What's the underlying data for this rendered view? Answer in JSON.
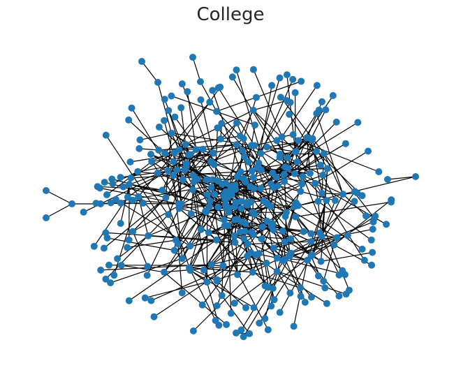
{
  "title": "College",
  "style": {
    "node_color": "#1f77b4",
    "edge_color": "#000000",
    "background": "#ffffff"
  }
}
